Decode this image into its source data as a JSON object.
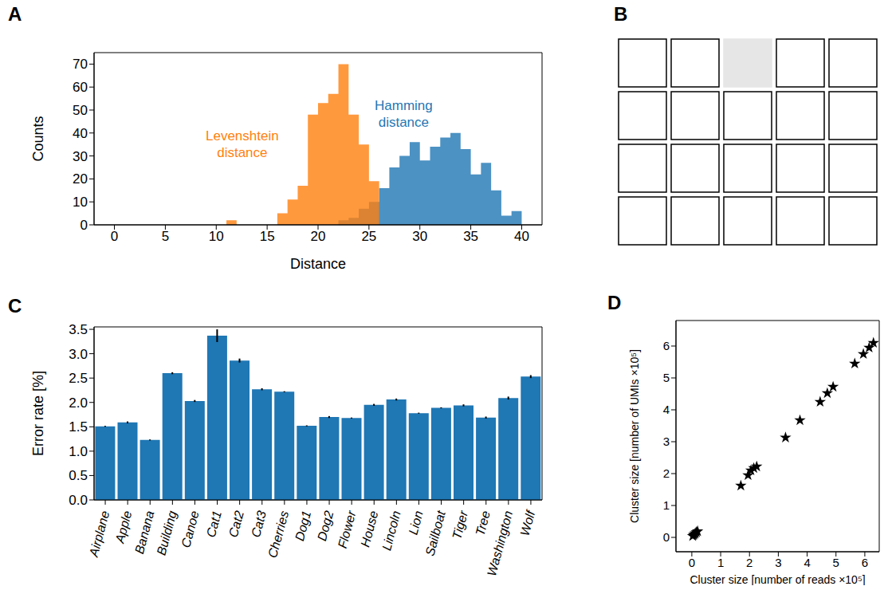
{
  "chart_data": [
    {
      "panel": "A",
      "type": "histogram",
      "x_label": "Distance",
      "y_label": "Counts",
      "bins": [
        0,
        1,
        2,
        3,
        4,
        5,
        6,
        7,
        8,
        9,
        10,
        11,
        12,
        13,
        14,
        15,
        16,
        17,
        18,
        19,
        20,
        21,
        22,
        23,
        24,
        25,
        26,
        27,
        28,
        29,
        30,
        31,
        32,
        33,
        34,
        35,
        36,
        37,
        38,
        39,
        40
      ],
      "series": [
        {
          "name": "Hamming distance",
          "color": "#1f77b4",
          "values": [
            0,
            0,
            0,
            0,
            0,
            0,
            0,
            0,
            0,
            0,
            0,
            0,
            0,
            0,
            0,
            0,
            0,
            0,
            0,
            0,
            0,
            0,
            2,
            3,
            7,
            10,
            16,
            25,
            30,
            36,
            28,
            34,
            38,
            40,
            33,
            22,
            27,
            15,
            4,
            6
          ]
        },
        {
          "name": "Levenshtein distance",
          "color": "#ff7f0e",
          "values": [
            0,
            0,
            0,
            0,
            0,
            0,
            0,
            0,
            0,
            0,
            0,
            2,
            0,
            0,
            0,
            0,
            5,
            11,
            17,
            48,
            53,
            57,
            70,
            48,
            35,
            19,
            0,
            0,
            0,
            0,
            0,
            0,
            0,
            0,
            0,
            0,
            0,
            0,
            0,
            0
          ]
        }
      ],
      "xlim": [
        -2,
        42
      ],
      "xticks": [
        0,
        5,
        10,
        15,
        20,
        25,
        30,
        35,
        40
      ],
      "ylim": [
        0,
        75
      ],
      "yticks": [
        0,
        10,
        20,
        30,
        40,
        50,
        60,
        70
      ]
    },
    {
      "panel": "B",
      "type": "image_grid"
    },
    {
      "panel": "C",
      "type": "bar",
      "y_label": "Error rate [%]",
      "categories": [
        "Airplane",
        "Apple",
        "Banana",
        "Building",
        "Canoe",
        "Cat1",
        "Cat2",
        "Cat3",
        "Cherries",
        "Dog1",
        "Dog2",
        "Flower",
        "House",
        "Lincoln",
        "Lion",
        "Sailboat",
        "Tiger",
        "Tree",
        "Washington",
        "Wolf"
      ],
      "values": [
        1.51,
        1.59,
        1.23,
        2.6,
        2.03,
        3.37,
        2.86,
        2.27,
        2.22,
        1.52,
        1.7,
        1.68,
        1.95,
        2.06,
        1.78,
        1.89,
        1.94,
        1.69,
        2.09,
        2.53
      ],
      "errors": [
        0.01,
        0.02,
        0.01,
        0.02,
        0.02,
        0.13,
        0.04,
        0.02,
        0.01,
        0.01,
        0.02,
        0.01,
        0.02,
        0.02,
        0.01,
        0.01,
        0.02,
        0.02,
        0.03,
        0.03
      ],
      "color": "#1f77b4",
      "ylim": [
        0,
        3.55
      ],
      "yticks": [
        {
          "value": 0,
          "label": "0.0"
        },
        0.5,
        {
          "value": 1,
          "label": "1.0"
        },
        1.5,
        {
          "value": 2,
          "label": "2.0"
        },
        2.5,
        {
          "value": 3,
          "label": "3.0"
        },
        3.5
      ]
    },
    {
      "panel": "D",
      "type": "scatter",
      "x_label": "Cluster size [number of reads ×10⁵]",
      "y_label": "Cluster size [number of UMIs ×10⁵]",
      "x": [
        0.03,
        0.06,
        0.09,
        0.12,
        0.16,
        0.2,
        1.7,
        1.95,
        2.05,
        2.15,
        2.25,
        3.25,
        3.75,
        4.45,
        4.7,
        4.9,
        5.65,
        5.95,
        6.15,
        6.3
      ],
      "values": [
        0.04,
        0.07,
        0.1,
        0.13,
        0.16,
        0.19,
        1.62,
        1.95,
        2.1,
        2.17,
        2.22,
        3.13,
        3.67,
        4.25,
        4.52,
        4.72,
        5.45,
        5.75,
        5.95,
        6.1
      ],
      "color": "#000000",
      "marker": "star",
      "xlim": [
        -0.55,
        6.5
      ],
      "xticks": [
        0,
        1,
        2,
        3,
        4,
        5,
        6
      ],
      "ylim": [
        -0.45,
        6.8
      ],
      "yticks": [
        0,
        1,
        2,
        3,
        4,
        5,
        6
      ]
    }
  ]
}
